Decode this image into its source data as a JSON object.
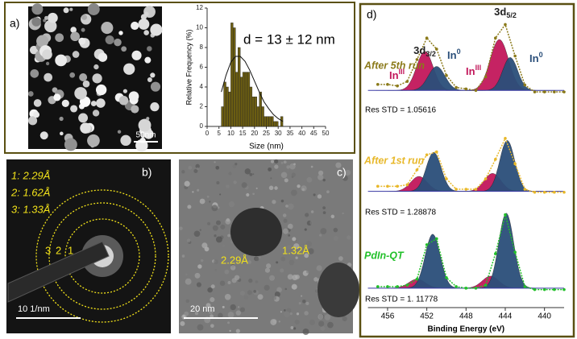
{
  "panels": {
    "a": {
      "label": "a)",
      "scale_bar": "50nm"
    },
    "b": {
      "label": "b)",
      "spacings": [
        "1: 2.29Å",
        "2: 1.62Å",
        "3: 1.33Å"
      ],
      "ring_labels": [
        "3",
        "2",
        "1"
      ],
      "scale_bar": "10 1/nm"
    },
    "c": {
      "label": "c)",
      "spacings": [
        "2.29Å",
        "1.32Å"
      ],
      "scale_bar": "20 nm"
    },
    "d": {
      "label": "d)"
    }
  },
  "chart_data": [
    {
      "type": "histogram",
      "annotation": "d = 13 ± 12 nm",
      "x_label": "Size (nm)",
      "y_label": "Relative Frequency (%)",
      "bins": [
        6,
        7,
        8,
        9,
        10,
        11,
        12,
        13,
        14,
        15,
        16,
        17,
        18,
        19,
        20,
        21,
        22,
        23,
        24,
        25,
        26,
        27,
        28,
        29,
        30,
        31,
        32,
        33
      ],
      "values": [
        2,
        4.5,
        4,
        3.5,
        10.5,
        10,
        5.5,
        8,
        5,
        5.5,
        5.5,
        5.5,
        4,
        3,
        3,
        2,
        3.5,
        2,
        1,
        1,
        1,
        1,
        0.5,
        0.5,
        0,
        1,
        0
      ],
      "color": "#6b5d12",
      "fit": {
        "x": [
          6,
          8,
          10,
          12,
          14,
          16,
          18,
          20,
          22,
          24,
          26,
          28,
          30,
          32
        ],
        "y": [
          3.5,
          5.2,
          6.5,
          7.1,
          7.1,
          6.6,
          5.7,
          4.6,
          3.5,
          2.5,
          1.8,
          1.2,
          0.8,
          0.5
        ]
      },
      "xlim": [
        0,
        50
      ],
      "xticks": [
        0,
        5,
        10,
        15,
        20,
        25,
        30,
        35,
        40,
        45,
        50
      ],
      "ylim": [
        0,
        12
      ],
      "yticks": [
        0,
        2,
        4,
        6,
        8,
        10,
        12
      ]
    },
    {
      "type": "xps",
      "x_label": "Binding Energy (eV)",
      "xlim": [
        458,
        438
      ],
      "xticks": [
        456,
        452,
        448,
        444,
        440
      ],
      "ylim": [
        0,
        100
      ],
      "x": [
        457,
        456,
        455,
        454,
        453,
        452,
        451,
        450,
        449,
        448,
        447,
        446,
        445,
        444,
        443,
        442,
        441,
        440,
        439,
        438
      ],
      "series": [
        {
          "name": "After 5th run",
          "color": "#8b7a1a",
          "res_std": "Res STD = 1.05616",
          "baseline": 72.5,
          "values": [
            74.5,
            74.5,
            74,
            75.5,
            82.8,
            90,
            86.3,
            77.5,
            73.5,
            73,
            72.5,
            77,
            90,
            94.5,
            84,
            74.3,
            72,
            72,
            72,
            72
          ],
          "components": [
            {
              "center": 452.2,
              "height": 13,
              "fwhm": 2,
              "color": "#c2185b"
            },
            {
              "center": 451,
              "height": 8,
              "fwhm": 2,
              "color": "#2b4f7a"
            },
            {
              "center": 444.6,
              "height": 17,
              "fwhm": 2.2,
              "color": "#c2185b"
            },
            {
              "center": 443.5,
              "height": 11,
              "fwhm": 1.8,
              "color": "#2b4f7a"
            }
          ]
        },
        {
          "name": "After 1st run",
          "color": "#e8b82a",
          "res_std": "Res STD = 1.28878",
          "baseline": 38.8,
          "values": [
            40.5,
            40.5,
            40.5,
            41,
            46,
            51,
            52,
            43,
            39.5,
            39.5,
            39.5,
            43,
            49.5,
            56.5,
            48,
            39.5,
            38.5,
            38.5,
            38.5,
            38.5
          ],
          "components": [
            {
              "center": 452.8,
              "height": 5,
              "fwhm": 2,
              "color": "#c2185b"
            },
            {
              "center": 451.3,
              "height": 13,
              "fwhm": 1.8,
              "color": "#2b4f7a"
            },
            {
              "center": 445.3,
              "height": 6,
              "fwhm": 2,
              "color": "#c2185b"
            },
            {
              "center": 443.8,
              "height": 17,
              "fwhm": 1.8,
              "color": "#2b4f7a"
            }
          ]
        },
        {
          "name": "PdIn-QT",
          "color": "#22c02a",
          "res_std": "Res STD = 1. 11778",
          "baseline": 6.5,
          "values": [
            7,
            7,
            7,
            7.5,
            9.5,
            21,
            23,
            10,
            7,
            6.5,
            6.5,
            7.5,
            18,
            31,
            18.5,
            7,
            6,
            6,
            6,
            6
          ],
          "components": [
            {
              "center": 453,
              "height": 3,
              "fwhm": 2,
              "color": "#c2185b"
            },
            {
              "center": 451.4,
              "height": 18,
              "fwhm": 1.8,
              "color": "#2b4f7a"
            },
            {
              "center": 445.5,
              "height": 4,
              "fwhm": 2,
              "color": "#c2185b"
            },
            {
              "center": 443.9,
              "height": 25,
              "fwhm": 1.8,
              "color": "#2b4f7a"
            }
          ]
        }
      ],
      "peak_labels": [
        {
          "text": "3d",
          "sub": "3/2"
        },
        {
          "text": "3d",
          "sub": "5/2"
        }
      ],
      "component_labels": [
        {
          "text": "In",
          "sup": "III",
          "color": "#c2185b"
        },
        {
          "text": "In",
          "sup": "0",
          "color": "#2b4f7a"
        },
        {
          "text": "In",
          "sup": "III",
          "color": "#c2185b"
        },
        {
          "text": "In",
          "sup": "0",
          "color": "#2b4f7a"
        }
      ]
    }
  ]
}
